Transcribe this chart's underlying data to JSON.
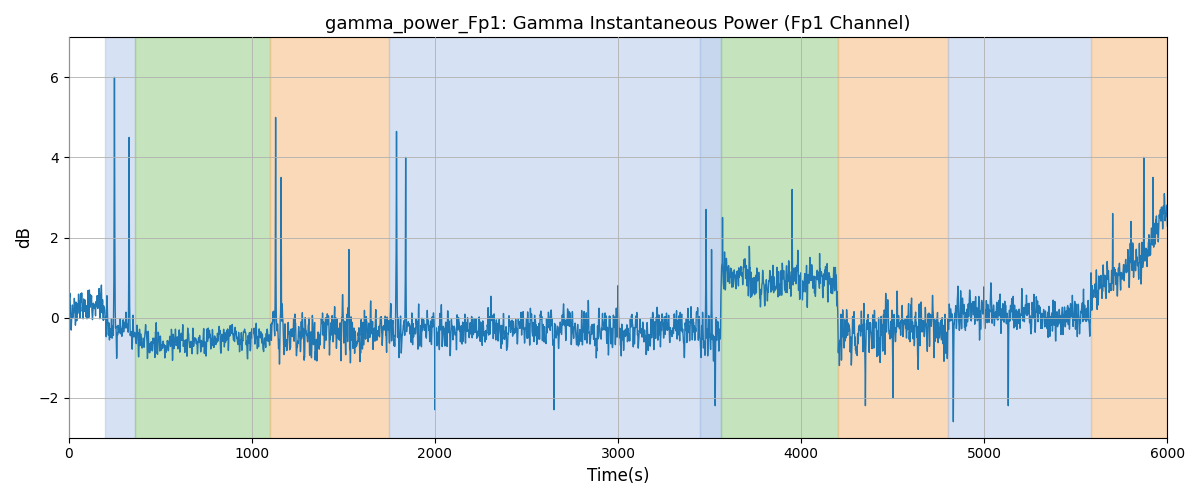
{
  "title": "gamma_power_Fp1: Gamma Instantaneous Power (Fp1 Channel)",
  "xlabel": "Time(s)",
  "ylabel": "dB",
  "xlim": [
    0,
    6000
  ],
  "ylim": [
    -3.0,
    7.0
  ],
  "yticks": [
    -2,
    0,
    2,
    4,
    6
  ],
  "xticks": [
    0,
    1000,
    2000,
    3000,
    4000,
    5000,
    6000
  ],
  "line_color": "#1f77b4",
  "line_width": 1.0,
  "bg_color": "#ffffff",
  "grid_color": "#b0b0b0",
  "bands": [
    {
      "start": 200,
      "end": 360,
      "color": "#aec6e8",
      "alpha": 0.5
    },
    {
      "start": 360,
      "end": 1100,
      "color": "#8dc87a",
      "alpha": 0.5
    },
    {
      "start": 1100,
      "end": 1750,
      "color": "#f5c08a",
      "alpha": 0.6
    },
    {
      "start": 1750,
      "end": 3450,
      "color": "#aec6e8",
      "alpha": 0.5
    },
    {
      "start": 3450,
      "end": 3560,
      "color": "#aec6e8",
      "alpha": 0.7
    },
    {
      "start": 3560,
      "end": 4200,
      "color": "#8dc87a",
      "alpha": 0.5
    },
    {
      "start": 4200,
      "end": 4800,
      "color": "#f5c08a",
      "alpha": 0.6
    },
    {
      "start": 4800,
      "end": 5580,
      "color": "#aec6e8",
      "alpha": 0.5
    },
    {
      "start": 5580,
      "end": 6000,
      "color": "#f5c08a",
      "alpha": 0.6
    }
  ],
  "seed": 42,
  "n_points": 6000
}
